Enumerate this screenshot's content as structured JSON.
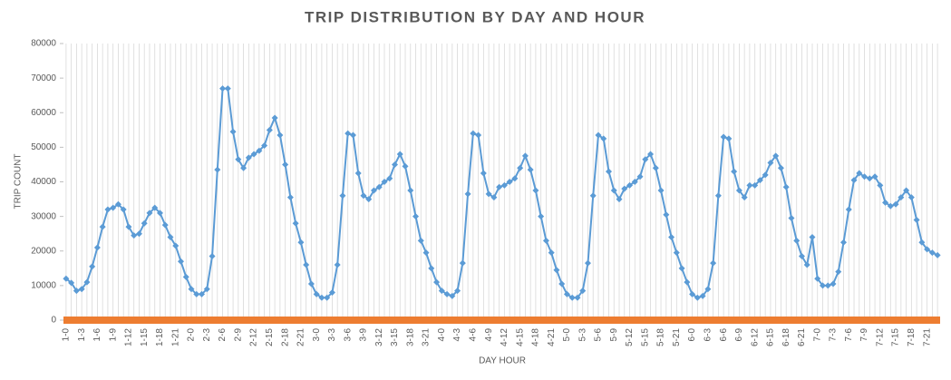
{
  "chart_data": {
    "type": "line",
    "title": "TRIP DISTRIBUTION BY DAY AND HOUR",
    "x_label": "DAY HOUR",
    "y_label": "TRIP COUNT",
    "categories": [
      "1-0",
      null,
      null,
      "1-3",
      null,
      null,
      "1-6",
      null,
      null,
      "1-9",
      null,
      null,
      "1-12",
      null,
      null,
      "1-15",
      null,
      null,
      "1-18",
      null,
      null,
      "1-21",
      null,
      null,
      "2-0",
      null,
      null,
      "2-3",
      null,
      null,
      "2-6",
      null,
      null,
      "2-9",
      null,
      null,
      "2-12",
      null,
      null,
      "2-15",
      null,
      null,
      "2-18",
      null,
      null,
      "2-21",
      null,
      null,
      "3-0",
      null,
      null,
      "3-3",
      null,
      null,
      "3-6",
      null,
      null,
      "3-9",
      null,
      null,
      "3-12",
      null,
      null,
      "3-15",
      null,
      null,
      "3-18",
      null,
      null,
      "3-21",
      null,
      null,
      "4-0",
      null,
      null,
      "4-3",
      null,
      null,
      "4-6",
      null,
      null,
      "4-9",
      null,
      null,
      "4-12",
      null,
      null,
      "4-15",
      null,
      null,
      "4-18",
      null,
      null,
      "4-21",
      null,
      null,
      "5-0",
      null,
      null,
      "5-3",
      null,
      null,
      "5-6",
      null,
      null,
      "5-9",
      null,
      null,
      "5-12",
      null,
      null,
      "5-15",
      null,
      null,
      "5-18",
      null,
      null,
      "5-21",
      null,
      null,
      "6-0",
      null,
      null,
      "6-3",
      null,
      null,
      "6-6",
      null,
      null,
      "6-9",
      null,
      null,
      "6-12",
      null,
      null,
      "6-15",
      null,
      null,
      "6-18",
      null,
      null,
      "6-21",
      null,
      null,
      "7-0",
      null,
      null,
      "7-3",
      null,
      null,
      "7-6",
      null,
      null,
      "7-9",
      null,
      null,
      "7-12",
      null,
      null,
      "7-15",
      null,
      null,
      "7-18",
      null,
      null,
      "7-21",
      null,
      null
    ],
    "values": [
      12000,
      10800,
      8500,
      9000,
      11000,
      15500,
      21000,
      27000,
      32000,
      32500,
      33500,
      32000,
      27000,
      24500,
      25000,
      28000,
      31000,
      32500,
      31000,
      27500,
      24000,
      21500,
      17000,
      12500,
      9000,
      7500,
      7500,
      9000,
      18500,
      43500,
      67000,
      67000,
      54500,
      46500,
      44000,
      47000,
      48000,
      49000,
      50500,
      55000,
      58500,
      53500,
      45000,
      35500,
      28000,
      22500,
      16000,
      10500,
      7500,
      6500,
      6500,
      8000,
      16000,
      36000,
      54000,
      53500,
      42500,
      36000,
      35000,
      37500,
      38500,
      40000,
      41000,
      45000,
      48000,
      44500,
      37500,
      30000,
      23000,
      19500,
      15000,
      11000,
      8500,
      7500,
      7000,
      8500,
      16500,
      36500,
      54000,
      53500,
      42500,
      36500,
      35500,
      38500,
      39000,
      40000,
      41000,
      44000,
      47500,
      43500,
      37500,
      30000,
      23000,
      19500,
      14500,
      10500,
      7500,
      6500,
      6500,
      8500,
      16500,
      36000,
      53500,
      52500,
      43000,
      37500,
      35000,
      38000,
      39000,
      40000,
      41500,
      46500,
      48000,
      44000,
      37500,
      30500,
      24000,
      19500,
      15000,
      11000,
      7500,
      6500,
      7000,
      9000,
      16500,
      36000,
      53000,
      52500,
      43000,
      37500,
      35500,
      39000,
      39000,
      40500,
      42000,
      45500,
      47500,
      44000,
      38500,
      29500,
      23000,
      18500,
      16000,
      24000,
      12000,
      10000,
      10000,
      10500,
      14000,
      22500,
      32000,
      40500,
      42500,
      41500,
      41000,
      41500,
      39000,
      34000,
      33000,
      33500,
      35500,
      37500,
      35500,
      29000,
      22500,
      20500,
      19500,
      18800
    ],
    "color": "#5b9bd5",
    "ylim": [
      0,
      80000
    ],
    "yticks": [
      0,
      10000,
      20000,
      30000,
      40000,
      50000,
      60000,
      70000,
      80000
    ]
  }
}
